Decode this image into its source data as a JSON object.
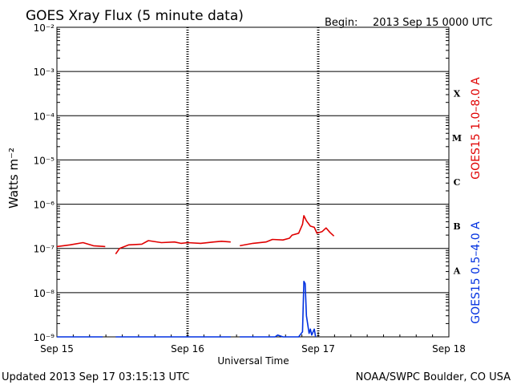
{
  "header": {
    "title": "GOES Xray Flux (5 minute data)",
    "begin_label": "Begin:",
    "begin_value": "2013 Sep 15 0000 UTC"
  },
  "footer": {
    "updated": "Updated 2013 Sep 17 03:15:13 UTC",
    "credit": "NOAA/SWPC Boulder, CO USA"
  },
  "colors": {
    "long_channel": "#e00000",
    "short_channel": "#0030e0",
    "axis": "#000000",
    "grid": "#000000"
  },
  "chart_data": {
    "type": "line",
    "title": "GOES Xray Flux (5 minute data)",
    "xlabel": "Universal Time",
    "ylabel": "Watts m⁻²",
    "y_scale": "log",
    "ylim": [
      1e-09,
      0.01
    ],
    "xlim_days": [
      0,
      3
    ],
    "x_ticks": [
      {
        "day": 0,
        "label": "Sep 15"
      },
      {
        "day": 1,
        "label": "Sep 16"
      },
      {
        "day": 2,
        "label": "Sep 17"
      },
      {
        "day": 3,
        "label": "Sep 18"
      }
    ],
    "y_ticks": [
      {
        "exp": -2,
        "label": "10⁻²"
      },
      {
        "exp": -3,
        "label": "10⁻³"
      },
      {
        "exp": -4,
        "label": "10⁻⁴"
      },
      {
        "exp": -5,
        "label": "10⁻⁵"
      },
      {
        "exp": -6,
        "label": "10⁻⁶"
      },
      {
        "exp": -7,
        "label": "10⁻⁷"
      },
      {
        "exp": -8,
        "label": "10⁻⁸"
      },
      {
        "exp": -9,
        "label": "10⁻⁹"
      }
    ],
    "flare_classes": [
      {
        "label": "X",
        "exp": -3.5
      },
      {
        "label": "M",
        "exp": -4.5
      },
      {
        "label": "C",
        "exp": -5.5
      },
      {
        "label": "B",
        "exp": -6.5
      },
      {
        "label": "A",
        "exp": -7.5
      }
    ],
    "grid": true,
    "series": [
      {
        "name": "GOES15 1.0–8.0 A",
        "color": "#e00000",
        "segments": [
          [
            [
              0.0,
              1.1e-07
            ],
            [
              0.1,
              1.2e-07
            ],
            [
              0.2,
              1.35e-07
            ],
            [
              0.28,
              1.15e-07
            ],
            [
              0.37,
              1.1e-07
            ]
          ],
          [
            [
              0.45,
              7.5e-08
            ],
            [
              0.48,
              1e-07
            ],
            [
              0.55,
              1.2e-07
            ],
            [
              0.65,
              1.25e-07
            ],
            [
              0.7,
              1.5e-07
            ],
            [
              0.8,
              1.35e-07
            ],
            [
              0.9,
              1.4e-07
            ],
            [
              0.95,
              1.3e-07
            ],
            [
              1.0,
              1.35e-07
            ],
            [
              1.1,
              1.3e-07
            ],
            [
              1.2,
              1.4e-07
            ],
            [
              1.26,
              1.45e-07
            ],
            [
              1.33,
              1.4e-07
            ]
          ],
          [
            [
              1.4,
              1.15e-07
            ],
            [
              1.5,
              1.3e-07
            ],
            [
              1.6,
              1.4e-07
            ],
            [
              1.65,
              1.6e-07
            ],
            [
              1.73,
              1.55e-07
            ],
            [
              1.78,
              1.7e-07
            ],
            [
              1.8,
              2e-07
            ],
            [
              1.85,
              2.2e-07
            ],
            [
              1.88,
              3.5e-07
            ],
            [
              1.89,
              5.5e-07
            ],
            [
              1.91,
              4.2e-07
            ],
            [
              1.94,
              3.2e-07
            ],
            [
              1.97,
              3e-07
            ],
            [
              1.99,
              2.2e-07
            ],
            [
              2.03,
              2.4e-07
            ],
            [
              2.06,
              2.9e-07
            ],
            [
              2.09,
              2.3e-07
            ],
            [
              2.12,
              1.9e-07
            ]
          ]
        ]
      },
      {
        "name": "GOES15 0.5–4.0 A",
        "color": "#0030e0",
        "segments": [
          [
            [
              0.0,
              1e-09
            ],
            [
              0.35,
              1e-09
            ]
          ],
          [
            [
              0.45,
              1e-09
            ],
            [
              1.33,
              1e-09
            ]
          ],
          [
            [
              1.4,
              1e-09
            ],
            [
              1.67,
              1e-09
            ],
            [
              1.69,
              1.1e-09
            ],
            [
              1.73,
              1e-09
            ],
            [
              1.85,
              1e-09
            ],
            [
              1.88,
              1.3e-09
            ],
            [
              1.89,
              1.8e-08
            ],
            [
              1.9,
              1.6e-08
            ],
            [
              1.91,
              3e-09
            ],
            [
              1.93,
              1.2e-09
            ],
            [
              1.94,
              1.5e-09
            ],
            [
              1.95,
              1.1e-09
            ],
            [
              1.97,
              1.5e-09
            ],
            [
              1.98,
              1e-09
            ]
          ]
        ]
      }
    ]
  }
}
